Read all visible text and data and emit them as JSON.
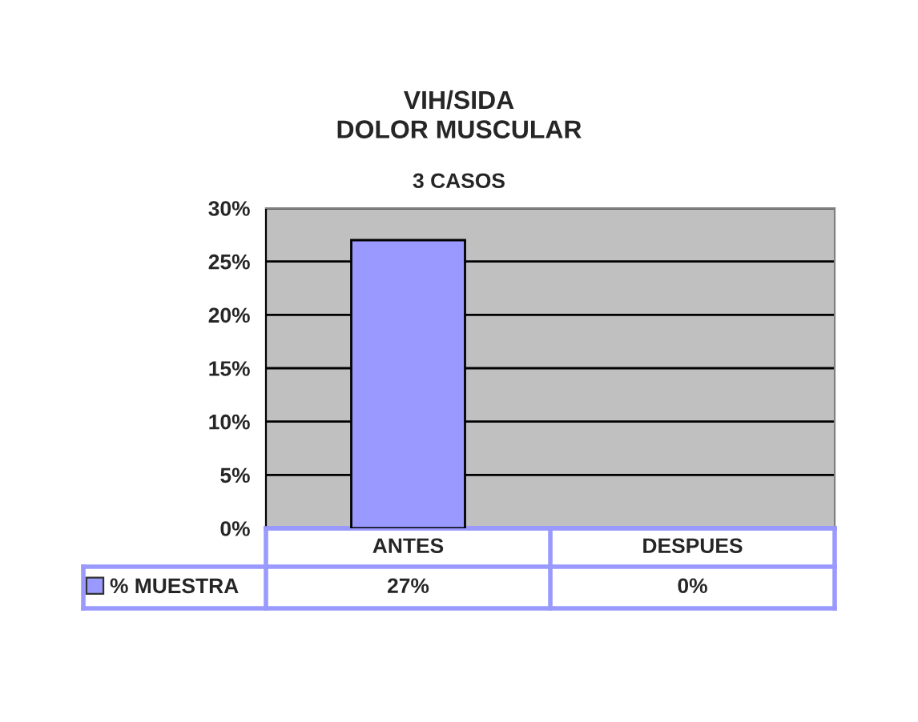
{
  "chart_data": {
    "type": "bar",
    "title": "VIH/SIDA\nDOLOR MUSCULAR",
    "subtitle": "3 CASOS",
    "categories": [
      "ANTES",
      "DESPUES"
    ],
    "series": [
      {
        "name": "% MUESTRA",
        "color": "#9999ff",
        "values": [
          27,
          0
        ],
        "value_labels": [
          "27%",
          "0%"
        ]
      }
    ],
    "ylim": [
      0,
      30
    ],
    "yticks": [
      {
        "value": 0,
        "label": "0%"
      },
      {
        "value": 5,
        "label": "5%"
      },
      {
        "value": 10,
        "label": "10%"
      },
      {
        "value": 15,
        "label": "15%"
      },
      {
        "value": 20,
        "label": "20%"
      },
      {
        "value": 25,
        "label": "25%"
      },
      {
        "value": 30,
        "label": "30%"
      }
    ],
    "grid": "y",
    "legend": "bottom"
  }
}
